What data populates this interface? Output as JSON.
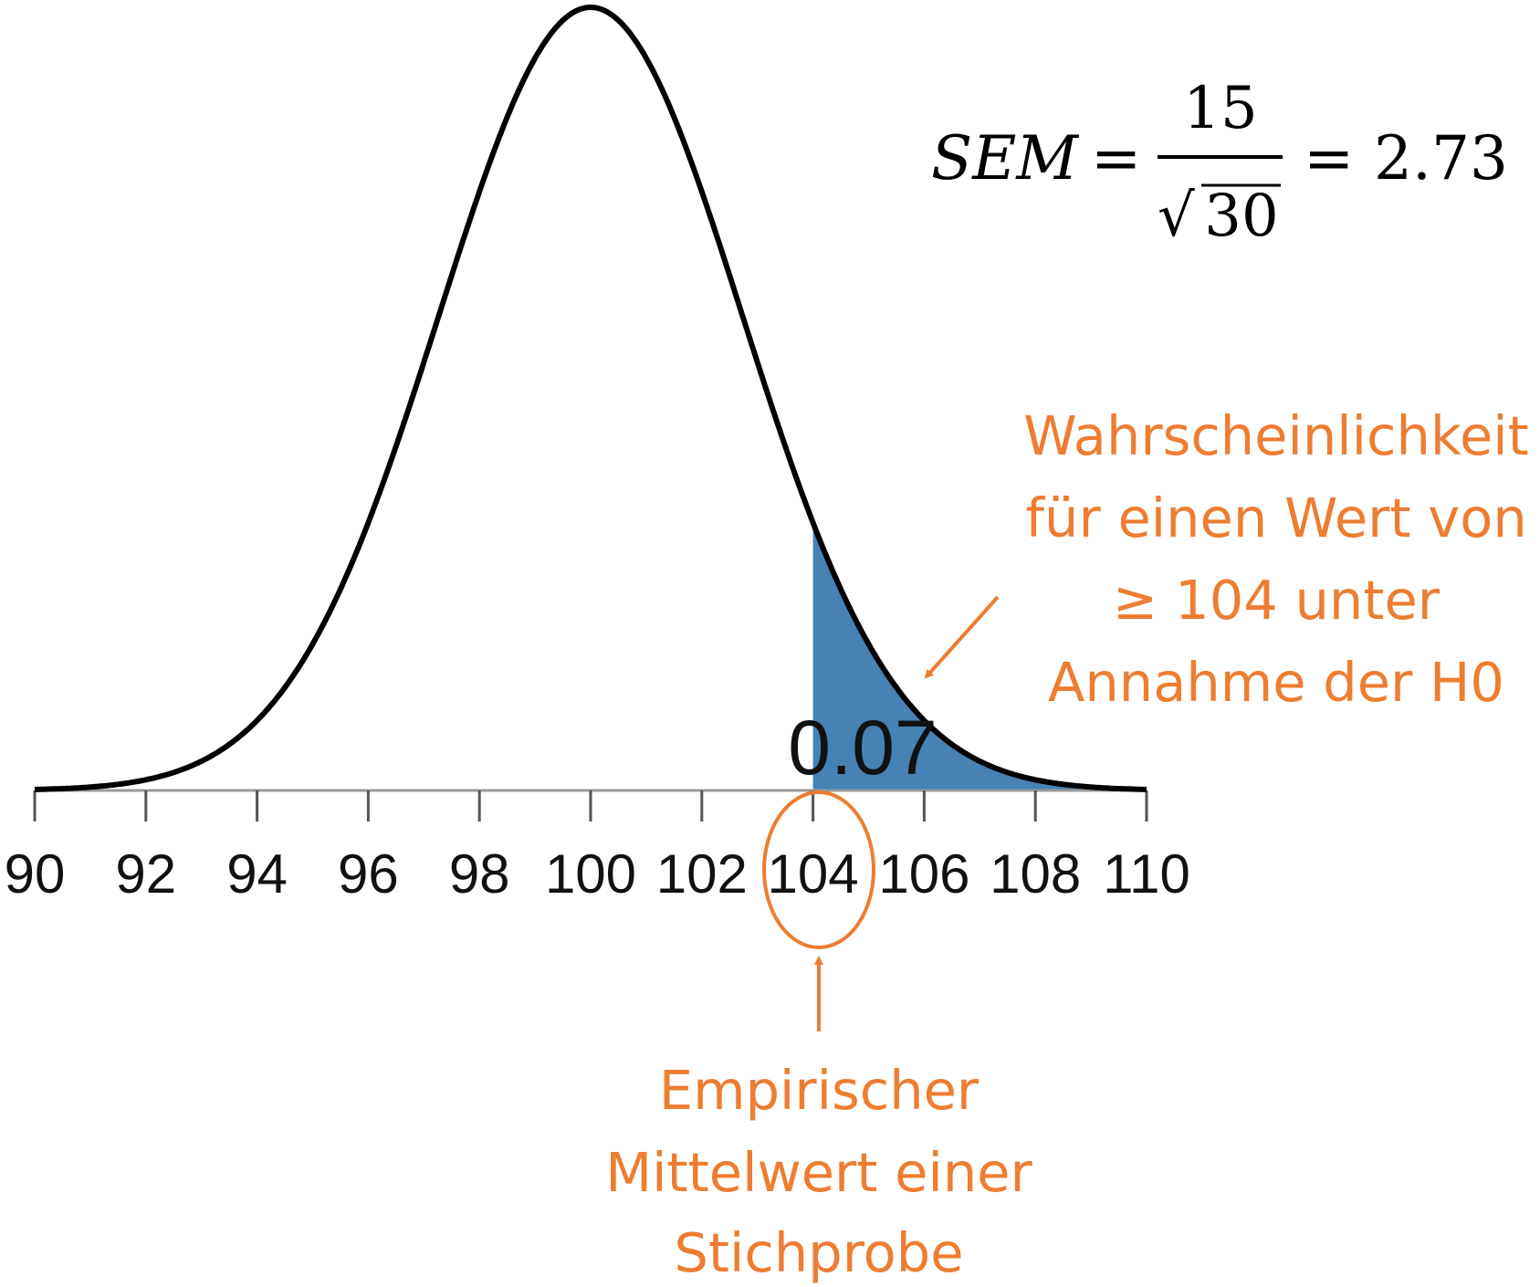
{
  "chart_data": {
    "type": "area",
    "distribution": "normal",
    "mean": 100,
    "sd": 2.73,
    "xlim": [
      90,
      110
    ],
    "x_ticks": [
      "90",
      "92",
      "94",
      "96",
      "98",
      "100",
      "102",
      "104",
      "106",
      "108",
      "110"
    ],
    "shaded_from": 104,
    "shaded_area_label": "0.07",
    "colors": {
      "curve": "#000000",
      "shade": "#4682b4",
      "annotation": "#ed7d31",
      "axis": "#999999"
    }
  },
  "formula": {
    "lhs": "SEM",
    "eq1": "=",
    "numerator": "15",
    "radical": "√",
    "denominator": "30",
    "eq2": "=",
    "result": "2.73"
  },
  "annotations": {
    "probability": [
      "Wahrscheinlichkeit",
      "für einen Wert von",
      "≥ 104 unter",
      "Annahme der H0"
    ],
    "sample_mean": [
      "Empirischer",
      "Mittelwert einer",
      "Stichprobe"
    ]
  }
}
